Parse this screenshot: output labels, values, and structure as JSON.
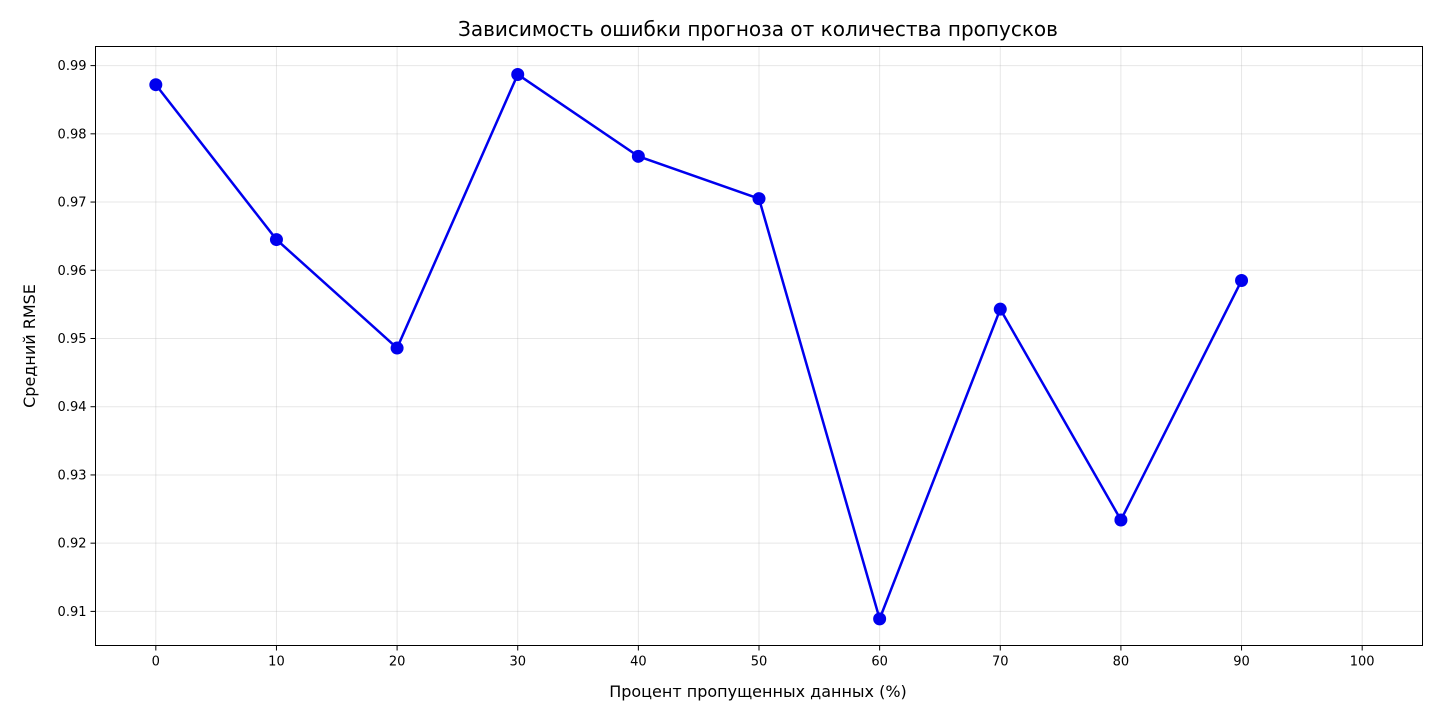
{
  "chart_data": {
    "type": "line",
    "title": "Зависимость ошибки прогноза от количества пропусков",
    "xlabel": "Процент пропущенных данных (%)",
    "ylabel": "Средний RMSE",
    "xlim": [
      -5,
      105
    ],
    "ylim": [
      0.905,
      0.9928
    ],
    "xticks": [
      0,
      10,
      20,
      30,
      40,
      50,
      60,
      70,
      80,
      90,
      100
    ],
    "yticks": [
      0.91,
      0.92,
      0.93,
      0.94,
      0.95,
      0.96,
      0.97,
      0.98,
      0.99
    ],
    "ytick_labels": [
      "0.91",
      "0.92",
      "0.93",
      "0.94",
      "0.95",
      "0.96",
      "0.97",
      "0.98",
      "0.99"
    ],
    "grid": true,
    "series": [
      {
        "color": "#0000ee",
        "x": [
          0,
          10,
          20,
          30,
          40,
          50,
          60,
          70,
          80,
          90
        ],
        "y": [
          0.9872,
          0.9645,
          0.9486,
          0.9887,
          0.9767,
          0.9705,
          0.9089,
          0.9543,
          0.9234,
          0.9585
        ]
      }
    ]
  }
}
